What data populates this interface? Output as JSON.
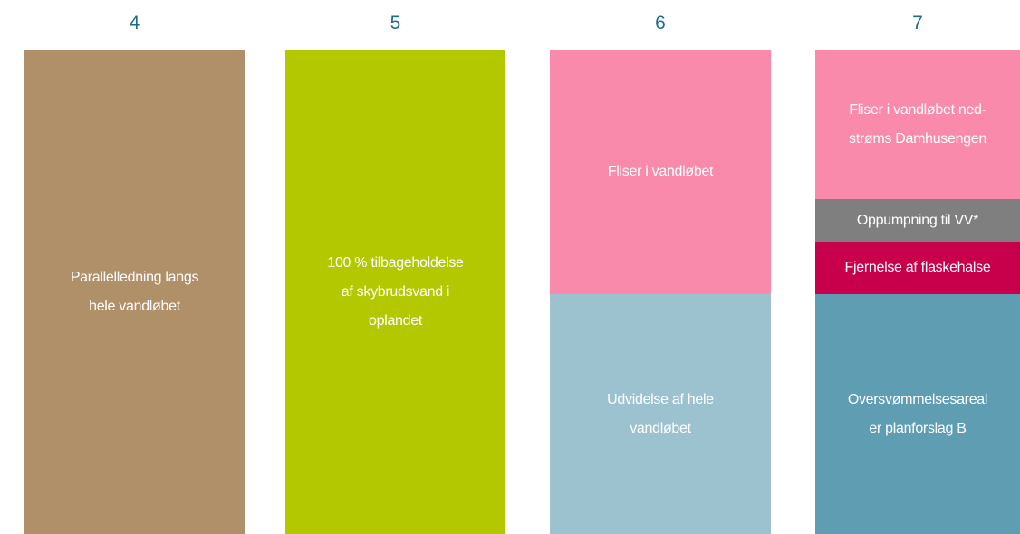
{
  "columns": [
    {
      "header": "4",
      "blocks": [
        {
          "lines": [
            "Parallelledning langs",
            "hele vandløbet"
          ]
        }
      ]
    },
    {
      "header": "5",
      "blocks": [
        {
          "lines": [
            "100 % tilbageholdelse",
            "af skybrudsvand i",
            "oplandet"
          ]
        }
      ]
    },
    {
      "header": "6",
      "blocks": [
        {
          "lines": [
            "Fliser i vandløbet"
          ]
        },
        {
          "lines": [
            "Udvidelse af hele",
            "vandløbet"
          ]
        }
      ]
    },
    {
      "header": "7",
      "blocks": [
        {
          "lines": [
            "Fliser i vandløbet ned-",
            "strøms Damhusengen"
          ]
        },
        {
          "lines": [
            "Oppumpning til VV*"
          ]
        },
        {
          "lines": [
            "Fjernelse af flaskehalse"
          ]
        },
        {
          "lines": [
            "Oversvømmelsesareal",
            "er planforslag B"
          ]
        }
      ]
    }
  ]
}
